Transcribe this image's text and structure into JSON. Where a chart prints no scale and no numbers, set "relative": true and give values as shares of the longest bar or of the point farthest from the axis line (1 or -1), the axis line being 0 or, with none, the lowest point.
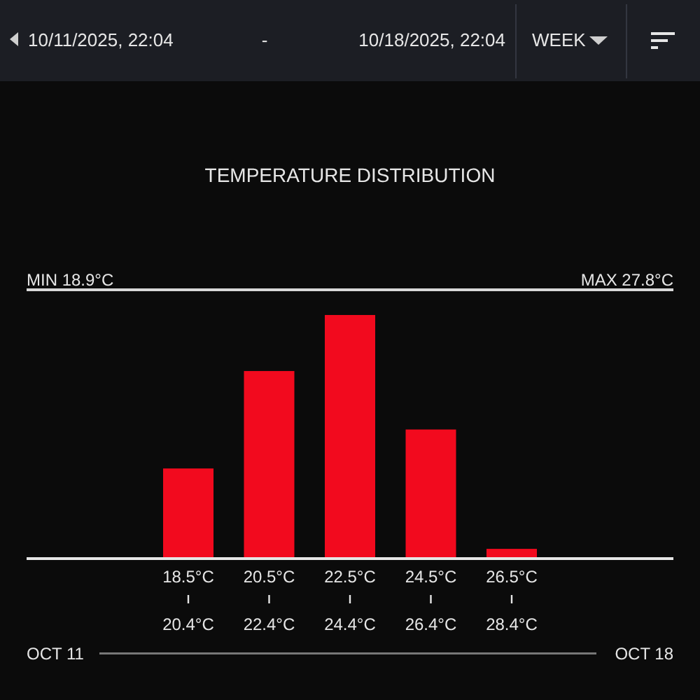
{
  "chart_data": {
    "type": "bar",
    "title": "TEMPERATURE DISTRIBUTION",
    "categories": [
      "18.5°C",
      "20.5°C",
      "22.5°C",
      "24.5°C",
      "26.5°C"
    ],
    "values": [
      0.37,
      0.77,
      1,
      0.53,
      0.04
    ],
    "color": "#f20a1e",
    "relative": true,
    "annotations": [
      "10/11/2025, 22:04",
      "-",
      "10/18/2025, 22:04",
      "WEEK",
      "MIN 18.9°C",
      "MAX 27.8°C",
      "OCT 11",
      "OCT 18",
      {
        "text": "20.4°C",
        "x": "18.5°C"
      },
      {
        "text": "22.4°C",
        "x": "20.5°C"
      },
      {
        "text": "24.4°C",
        "x": "22.5°C"
      },
      {
        "text": "26.4°C",
        "x": "24.5°C"
      },
      {
        "text": "28.4°C",
        "x": "26.5°C"
      }
    ]
  }
}
